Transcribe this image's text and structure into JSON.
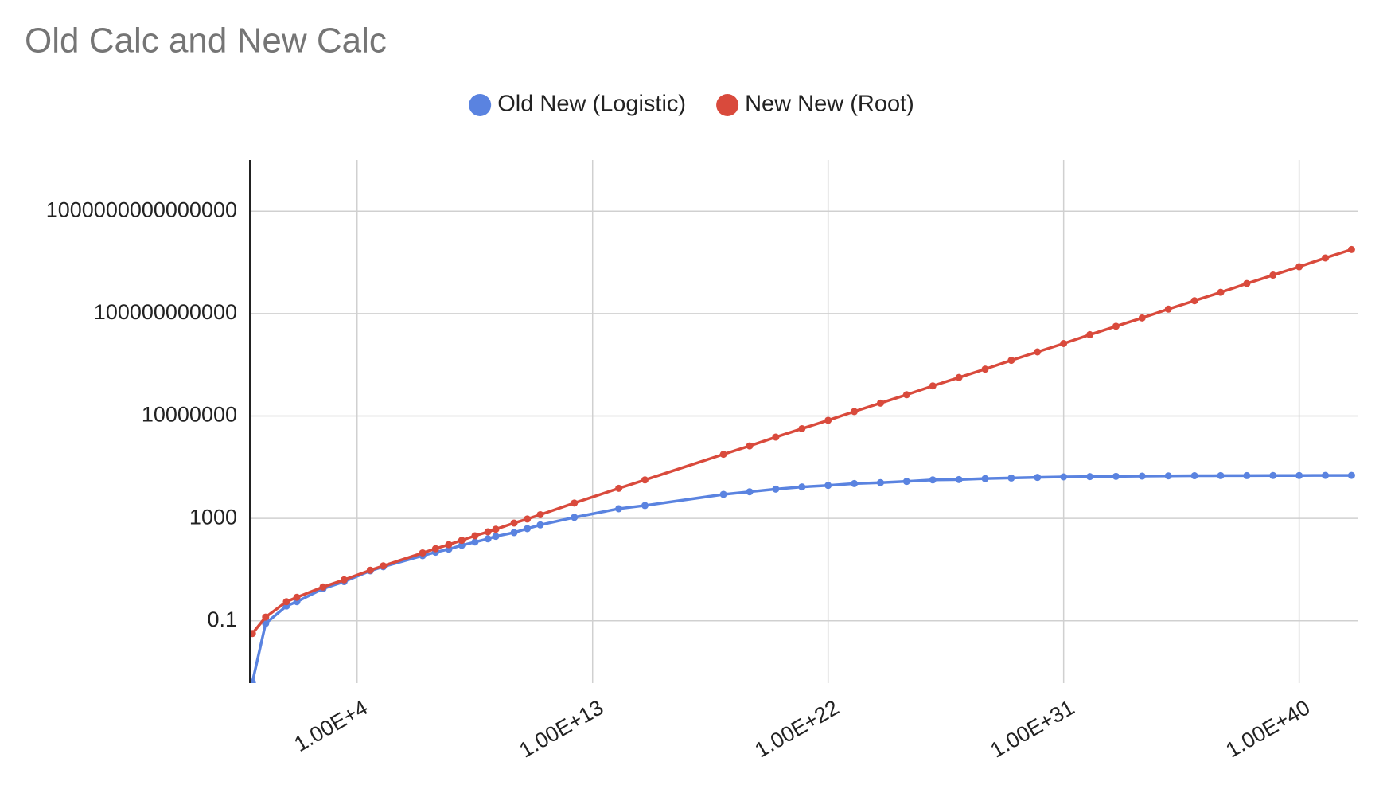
{
  "chart_data": {
    "type": "line",
    "title": "Old Calc and New Calc",
    "x": [
      1,
      3.2,
      20,
      50,
      500,
      3200,
      32000,
      100000,
      3200000,
      10000000,
      32000000,
      100000000,
      320000000,
      1000000000,
      2000000000,
      10000000000,
      32000000000,
      100000000000,
      2000000000000,
      100000000000000.0,
      1000000000000000.0,
      1e+18,
      1e+19,
      1e+20,
      1e+21,
      1e+22,
      1e+23,
      1e+24,
      1e+25,
      1e+26,
      1e+27,
      1e+28,
      1e+29,
      1e+30,
      1e+31,
      1e+32,
      1e+33,
      1e+34,
      1e+35,
      1e+36,
      1e+37,
      1e+38,
      1e+39,
      1e+40,
      1e+41,
      1e+42
    ],
    "series": [
      {
        "name": "Old New (Logistic)",
        "color": "#5a83e0",
        "values": [
          0.0004,
          0.079,
          0.38,
          0.56,
          1.8,
          3.4,
          9,
          13,
          35,
          48,
          63,
          89,
          120,
          160,
          200,
          280,
          400,
          560,
          1100,
          2400,
          3200,
          8700,
          11000,
          14000,
          17000,
          19500,
          23000,
          25000,
          28000,
          32000,
          33000,
          36000,
          38000,
          40000,
          42000,
          43000,
          44000,
          45000,
          46000,
          46500,
          47000,
          47000,
          47500,
          47500,
          48000,
          48000
        ]
      },
      {
        "name": "New New (Root)",
        "color": "#d94a3c",
        "values": [
          0.032,
          0.14,
          0.56,
          0.83,
          2.1,
          4,
          9.5,
          14,
          45,
          66,
          95,
          140,
          210,
          300,
          380,
          660,
          950,
          1400,
          4000,
          15000,
          32000,
          320000,
          680000,
          1500000,
          3200000,
          6800000,
          15000000,
          32000000,
          68000000,
          150000000,
          320000000,
          680000000,
          1500000000,
          3200000000,
          6800000000,
          15000000000,
          32000000000,
          68000000000,
          150000000000,
          320000000000,
          680000000000,
          1500000000000,
          3200000000000,
          6800000000000,
          15000000000000,
          32000000000000
        ]
      }
    ],
    "xlog": true,
    "ylog": true,
    "xlim": [
      0.8,
      1.7e+42
    ],
    "ylim": [
      0.00037,
      1e+17
    ],
    "xticks": [
      {
        "value": 10000,
        "label": "1.00E+4"
      },
      {
        "value": 10000000000000.0,
        "label": "1.00E+13"
      },
      {
        "value": 1e+22,
        "label": "1.00E+22"
      },
      {
        "value": 1e+31,
        "label": "1.00E+31"
      },
      {
        "value": 1e+40,
        "label": "1.00E+40"
      }
    ],
    "yticks": [
      0.1,
      1000,
      10000000,
      100000000000,
      1000000000000000
    ],
    "grid": true,
    "legend": "top"
  }
}
